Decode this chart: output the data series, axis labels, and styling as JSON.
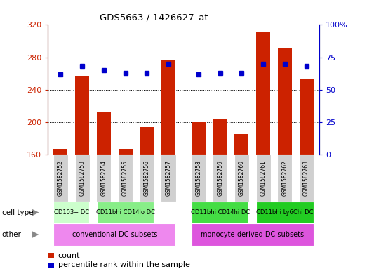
{
  "title": "GDS5663 / 1426627_at",
  "samples": [
    "GSM1582752",
    "GSM1582753",
    "GSM1582754",
    "GSM1582755",
    "GSM1582756",
    "GSM1582757",
    "GSM1582758",
    "GSM1582759",
    "GSM1582760",
    "GSM1582761",
    "GSM1582762",
    "GSM1582763"
  ],
  "counts": [
    167,
    257,
    213,
    167,
    194,
    276,
    200,
    204,
    185,
    312,
    291,
    253
  ],
  "percentiles": [
    62,
    68,
    65,
    63,
    63,
    70,
    62,
    63,
    63,
    70,
    70,
    68
  ],
  "ylim_left": [
    160,
    320
  ],
  "ylim_right": [
    0,
    100
  ],
  "yticks_left": [
    160,
    200,
    240,
    280,
    320
  ],
  "yticks_right": [
    0,
    25,
    50,
    75,
    100
  ],
  "bar_color": "#cc2200",
  "dot_color": "#0000cc",
  "label_bg_color": "#cccccc",
  "cell_types": [
    {
      "label": "CD103+ DC",
      "start": 0,
      "end": 1,
      "color": "#ccffcc"
    },
    {
      "label": "CD11bhi CD14lo DC",
      "start": 2,
      "end": 4,
      "color": "#88ee88"
    },
    {
      "label": "CD11bhi CD14hi DC",
      "start": 6,
      "end": 8,
      "color": "#44dd44"
    },
    {
      "label": "CD11bhi Ly6Chi DC",
      "start": 9,
      "end": 11,
      "color": "#22cc22"
    }
  ],
  "other_groups": [
    {
      "label": "conventional DC subsets",
      "start": 0,
      "end": 5,
      "color": "#ee88ee"
    },
    {
      "label": "monocyte-derived DC subsets",
      "start": 6,
      "end": 11,
      "color": "#dd55dd"
    }
  ],
  "legend_count_label": "count",
  "legend_percentile_label": "percentile rank within the sample",
  "cell_type_label": "cell type",
  "other_label": "other"
}
